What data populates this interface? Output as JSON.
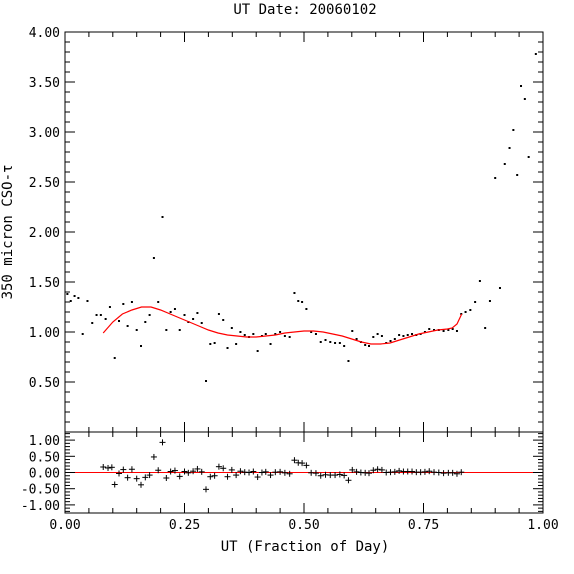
{
  "chart_data": {
    "type": "scatter",
    "title": "UT Date: 20060102",
    "xlabel": "UT (Fraction of Day)",
    "ylabel": "350 micron CSO-τ",
    "xlim": [
      0,
      1
    ],
    "ylim": [
      0,
      4
    ],
    "x_ticks": [
      "0.00",
      "0.25",
      "0.50",
      "0.75",
      "1.00"
    ],
    "y_ticks": [
      "0.50",
      "1.00",
      "1.50",
      "2.00",
      "2.50",
      "3.00",
      "3.50",
      "4.00"
    ],
    "residual_ylim": [
      -1.25,
      1.25
    ],
    "residual_ticks": [
      "1.00",
      "0.50",
      "0.00",
      "-0.50",
      "-1.00"
    ],
    "colors": {
      "points": "#000000",
      "fit": "#ff0000",
      "zero_line": "#ff0000"
    },
    "points": [
      [
        0.005,
        1.38
      ],
      [
        0.012,
        1.31
      ],
      [
        0.02,
        1.36
      ],
      [
        0.028,
        1.34
      ],
      [
        0.037,
        0.98
      ],
      [
        0.047,
        1.31
      ],
      [
        0.057,
        1.09
      ],
      [
        0.066,
        1.17
      ],
      [
        0.075,
        1.17
      ],
      [
        0.085,
        1.13
      ],
      [
        0.094,
        1.25
      ],
      [
        0.104,
        0.74
      ],
      [
        0.113,
        1.11
      ],
      [
        0.122,
        1.28
      ],
      [
        0.131,
        1.06
      ],
      [
        0.14,
        1.3
      ],
      [
        0.15,
        1.02
      ],
      [
        0.159,
        0.86
      ],
      [
        0.168,
        1.1
      ],
      [
        0.177,
        1.17
      ],
      [
        0.186,
        1.74
      ],
      [
        0.195,
        1.3
      ],
      [
        0.204,
        2.15
      ],
      [
        0.212,
        1.02
      ],
      [
        0.221,
        1.2
      ],
      [
        0.23,
        1.23
      ],
      [
        0.24,
        1.02
      ],
      [
        0.25,
        1.17
      ],
      [
        0.258,
        1.1
      ],
      [
        0.268,
        1.13
      ],
      [
        0.277,
        1.19
      ],
      [
        0.286,
        1.09
      ],
      [
        0.295,
        0.51
      ],
      [
        0.304,
        0.88
      ],
      [
        0.313,
        0.89
      ],
      [
        0.322,
        1.18
      ],
      [
        0.331,
        1.12
      ],
      [
        0.34,
        0.84
      ],
      [
        0.349,
        1.04
      ],
      [
        0.358,
        0.88
      ],
      [
        0.367,
        1.0
      ],
      [
        0.376,
        0.97
      ],
      [
        0.385,
        0.95
      ],
      [
        0.394,
        0.98
      ],
      [
        0.403,
        0.81
      ],
      [
        0.412,
        0.96
      ],
      [
        0.42,
        0.98
      ],
      [
        0.43,
        0.88
      ],
      [
        0.44,
        0.98
      ],
      [
        0.45,
        1.0
      ],
      [
        0.46,
        0.96
      ],
      [
        0.47,
        0.95
      ],
      [
        0.48,
        1.39
      ],
      [
        0.488,
        1.31
      ],
      [
        0.496,
        1.3
      ],
      [
        0.505,
        1.23
      ],
      [
        0.515,
        1.0
      ],
      [
        0.525,
        0.98
      ],
      [
        0.535,
        0.9
      ],
      [
        0.545,
        0.92
      ],
      [
        0.555,
        0.9
      ],
      [
        0.565,
        0.89
      ],
      [
        0.575,
        0.89
      ],
      [
        0.584,
        0.86
      ],
      [
        0.593,
        0.71
      ],
      [
        0.601,
        1.01
      ],
      [
        0.61,
        0.93
      ],
      [
        0.619,
        0.9
      ],
      [
        0.628,
        0.87
      ],
      [
        0.636,
        0.86
      ],
      [
        0.645,
        0.95
      ],
      [
        0.654,
        0.98
      ],
      [
        0.663,
        0.96
      ],
      [
        0.672,
        0.89
      ],
      [
        0.681,
        0.91
      ],
      [
        0.69,
        0.93
      ],
      [
        0.699,
        0.97
      ],
      [
        0.708,
        0.96
      ],
      [
        0.717,
        0.97
      ],
      [
        0.726,
        0.98
      ],
      [
        0.735,
        0.97
      ],
      [
        0.744,
        0.98
      ],
      [
        0.753,
        1.0
      ],
      [
        0.762,
        1.03
      ],
      [
        0.772,
        1.02
      ],
      [
        0.782,
        1.02
      ],
      [
        0.792,
        1.01
      ],
      [
        0.802,
        1.02
      ],
      [
        0.811,
        1.03
      ],
      [
        0.82,
        1.01
      ],
      [
        0.829,
        1.18
      ],
      [
        0.838,
        1.2
      ],
      [
        0.848,
        1.22
      ],
      [
        0.858,
        1.3
      ],
      [
        0.868,
        1.51
      ],
      [
        0.879,
        1.04
      ],
      [
        0.889,
        1.31
      ],
      [
        0.9,
        2.54
      ],
      [
        0.91,
        1.44
      ],
      [
        0.92,
        2.68
      ],
      [
        0.93,
        2.84
      ],
      [
        0.938,
        3.02
      ],
      [
        0.946,
        2.57
      ],
      [
        0.954,
        3.46
      ],
      [
        0.962,
        3.33
      ],
      [
        0.97,
        2.75
      ],
      [
        0.985,
        3.78
      ]
    ],
    "fit_curve": [
      [
        0.08,
        0.99
      ],
      [
        0.1,
        1.1
      ],
      [
        0.12,
        1.18
      ],
      [
        0.14,
        1.22
      ],
      [
        0.16,
        1.25
      ],
      [
        0.18,
        1.25
      ],
      [
        0.2,
        1.22
      ],
      [
        0.22,
        1.18
      ],
      [
        0.24,
        1.14
      ],
      [
        0.26,
        1.1
      ],
      [
        0.28,
        1.06
      ],
      [
        0.3,
        1.02
      ],
      [
        0.32,
        0.99
      ],
      [
        0.34,
        0.97
      ],
      [
        0.36,
        0.96
      ],
      [
        0.38,
        0.95
      ],
      [
        0.4,
        0.95
      ],
      [
        0.42,
        0.96
      ],
      [
        0.44,
        0.97
      ],
      [
        0.46,
        0.99
      ],
      [
        0.48,
        1.0
      ],
      [
        0.5,
        1.01
      ],
      [
        0.52,
        1.01
      ],
      [
        0.54,
        1.0
      ],
      [
        0.56,
        0.98
      ],
      [
        0.58,
        0.96
      ],
      [
        0.6,
        0.93
      ],
      [
        0.62,
        0.9
      ],
      [
        0.64,
        0.88
      ],
      [
        0.66,
        0.88
      ],
      [
        0.68,
        0.89
      ],
      [
        0.7,
        0.92
      ],
      [
        0.72,
        0.95
      ],
      [
        0.74,
        0.98
      ],
      [
        0.76,
        1.0
      ],
      [
        0.78,
        1.02
      ],
      [
        0.8,
        1.03
      ],
      [
        0.81,
        1.04
      ],
      [
        0.82,
        1.08
      ],
      [
        0.83,
        1.18
      ]
    ],
    "residuals": [
      [
        0.08,
        0.17
      ],
      [
        0.09,
        0.14
      ],
      [
        0.098,
        0.16
      ],
      [
        0.104,
        -0.37
      ],
      [
        0.113,
        -0.03
      ],
      [
        0.122,
        0.09
      ],
      [
        0.131,
        -0.16
      ],
      [
        0.14,
        0.1
      ],
      [
        0.15,
        -0.19
      ],
      [
        0.159,
        -0.38
      ],
      [
        0.168,
        -0.15
      ],
      [
        0.177,
        -0.08
      ],
      [
        0.186,
        0.48
      ],
      [
        0.195,
        0.07
      ],
      [
        0.204,
        0.93
      ],
      [
        0.212,
        -0.17
      ],
      [
        0.221,
        0.03
      ],
      [
        0.23,
        0.06
      ],
      [
        0.24,
        -0.12
      ],
      [
        0.25,
        0.03
      ],
      [
        0.258,
        -0.01
      ],
      [
        0.268,
        0.04
      ],
      [
        0.277,
        0.11
      ],
      [
        0.286,
        0.02
      ],
      [
        0.295,
        -0.52
      ],
      [
        0.304,
        -0.13
      ],
      [
        0.313,
        -0.1
      ],
      [
        0.322,
        0.18
      ],
      [
        0.331,
        0.13
      ],
      [
        0.34,
        -0.13
      ],
      [
        0.349,
        0.08
      ],
      [
        0.358,
        -0.08
      ],
      [
        0.367,
        0.04
      ],
      [
        0.376,
        0.01
      ],
      [
        0.385,
        0.0
      ],
      [
        0.394,
        0.03
      ],
      [
        0.403,
        -0.14
      ],
      [
        0.412,
        0.0
      ],
      [
        0.42,
        0.02
      ],
      [
        0.43,
        -0.08
      ],
      [
        0.44,
        0.01
      ],
      [
        0.45,
        0.02
      ],
      [
        0.46,
        -0.01
      ],
      [
        0.47,
        -0.04
      ],
      [
        0.48,
        0.38
      ],
      [
        0.488,
        0.3
      ],
      [
        0.496,
        0.29
      ],
      [
        0.505,
        0.22
      ],
      [
        0.515,
        -0.01
      ],
      [
        0.525,
        -0.02
      ],
      [
        0.535,
        -0.1
      ],
      [
        0.545,
        -0.07
      ],
      [
        0.555,
        -0.08
      ],
      [
        0.565,
        -0.08
      ],
      [
        0.575,
        -0.06
      ],
      [
        0.584,
        -0.09
      ],
      [
        0.593,
        -0.24
      ],
      [
        0.601,
        0.08
      ],
      [
        0.61,
        0.02
      ],
      [
        0.619,
        0.0
      ],
      [
        0.628,
        -0.01
      ],
      [
        0.636,
        -0.02
      ],
      [
        0.645,
        0.07
      ],
      [
        0.654,
        0.1
      ],
      [
        0.663,
        0.08
      ],
      [
        0.672,
        0.0
      ],
      [
        0.681,
        0.01
      ],
      [
        0.69,
        0.02
      ],
      [
        0.699,
        0.05
      ],
      [
        0.708,
        0.03
      ],
      [
        0.717,
        0.03
      ],
      [
        0.726,
        0.03
      ],
      [
        0.735,
        0.01
      ],
      [
        0.744,
        0.01
      ],
      [
        0.753,
        0.02
      ],
      [
        0.762,
        0.04
      ],
      [
        0.772,
        0.01
      ],
      [
        0.782,
        0.0
      ],
      [
        0.792,
        -0.02
      ],
      [
        0.802,
        -0.01
      ],
      [
        0.811,
        -0.01
      ],
      [
        0.82,
        -0.04
      ],
      [
        0.829,
        0.01
      ]
    ]
  }
}
